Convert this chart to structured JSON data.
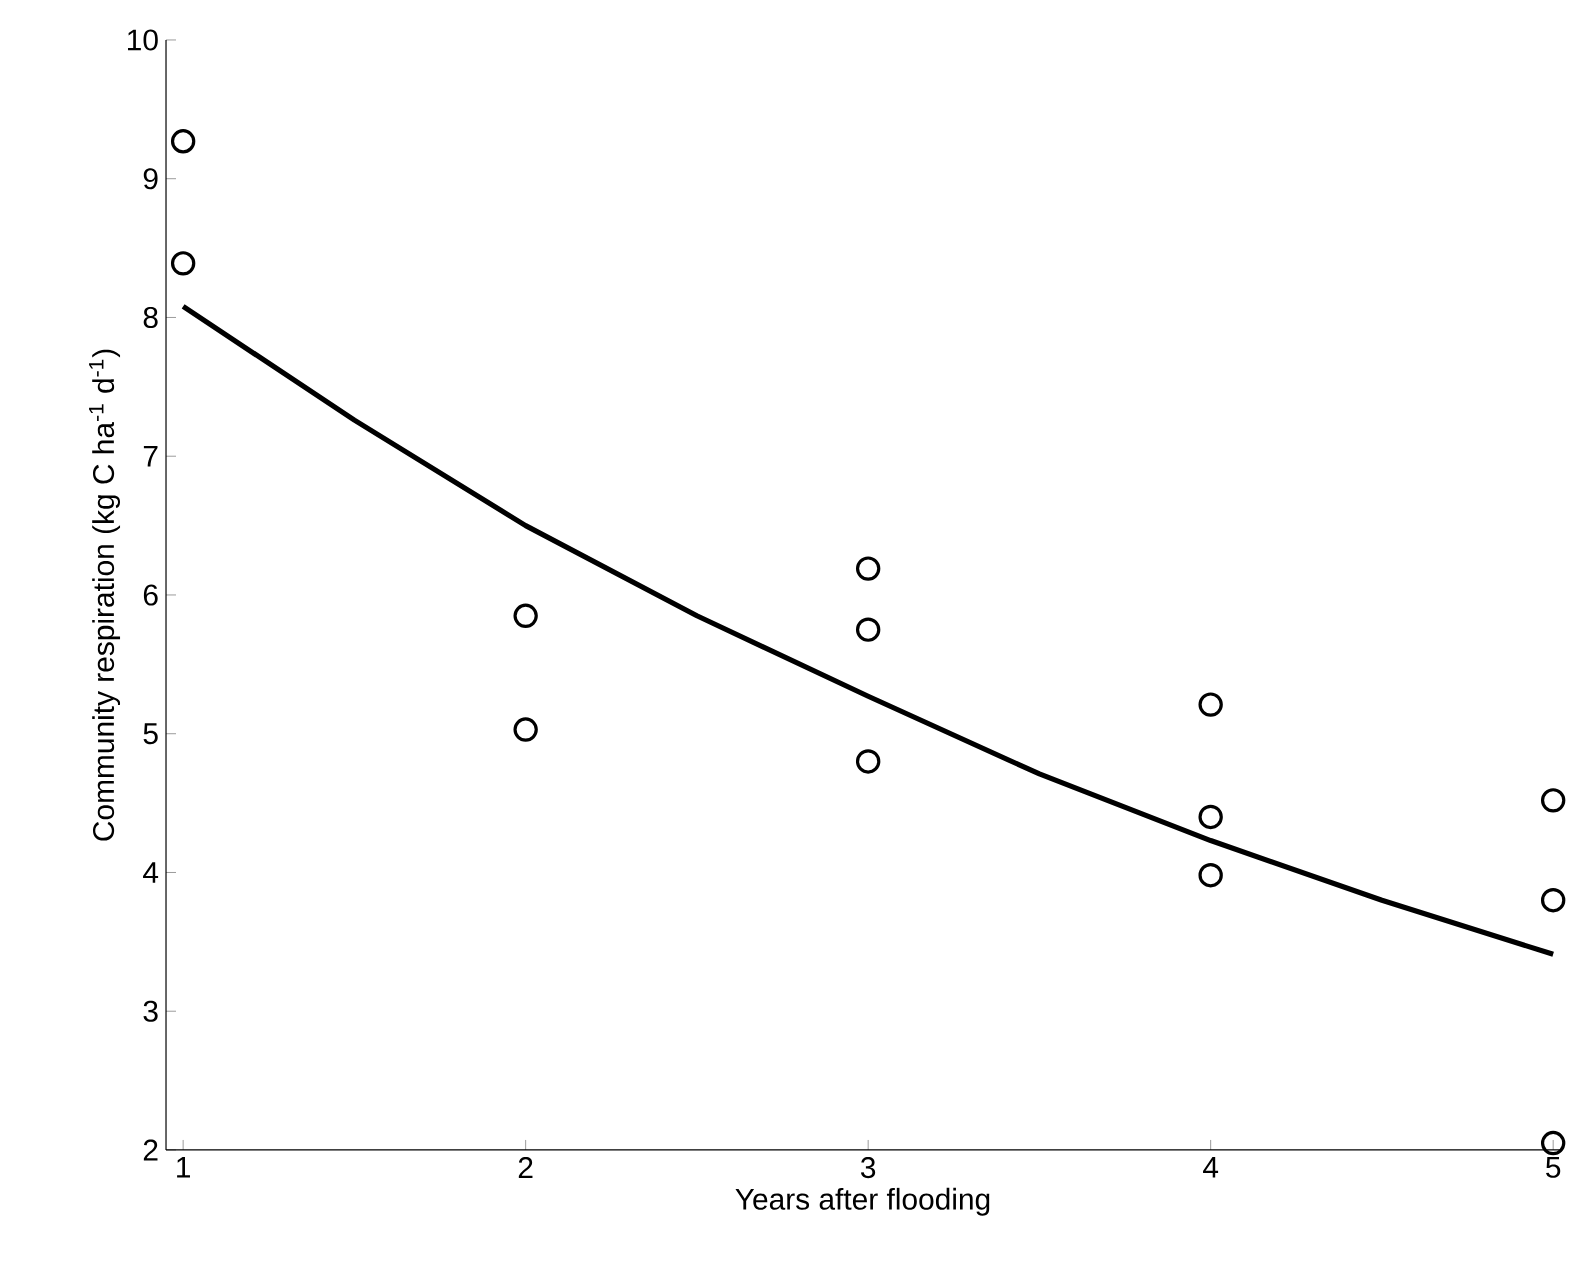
{
  "chart_data": {
    "type": "scatter",
    "xlabel": "Years after flooding",
    "ylabel": "Community respiration (kg C ha$^{-1}$ d$^{-1}$)",
    "xlim": [
      0.95,
      5.02
    ],
    "ylim": [
      2,
      10
    ],
    "xticks": [
      1,
      2,
      3,
      4,
      5
    ],
    "yticks": [
      2,
      3,
      4,
      5,
      6,
      7,
      8,
      9,
      10
    ],
    "series": [
      {
        "color": "#000000",
        "marker": "circle",
        "x": [
          1,
          1,
          2,
          2,
          3,
          3,
          3,
          4,
          4,
          4,
          5,
          5,
          5
        ],
        "values": [
          9.27,
          8.39,
          5.85,
          5.03,
          6.19,
          5.75,
          4.8,
          5.21,
          4.4,
          3.98,
          4.52,
          3.8,
          2.05
        ]
      },
      {
        "type": "line",
        "color": "#000000",
        "marker": "none",
        "line_style": "solid",
        "x": [
          1,
          1.5,
          2,
          2.5,
          3,
          3.5,
          4,
          4.5,
          5
        ],
        "values": [
          8.08,
          7.26,
          6.5,
          5.85,
          5.27,
          4.71,
          4.23,
          3.8,
          3.41
        ]
      }
    ]
  }
}
